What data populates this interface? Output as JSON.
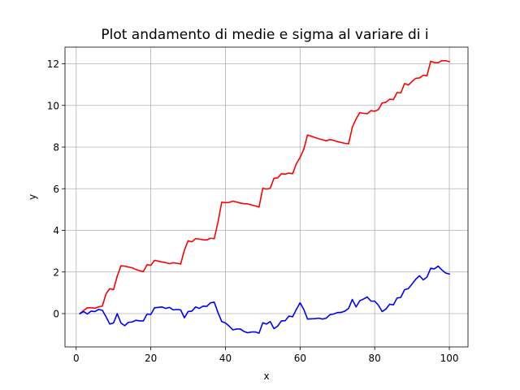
{
  "chart_data": {
    "type": "line",
    "title": "Plot andamento di medie e sigma al variare di i",
    "xlabel": "x",
    "ylabel": "y",
    "xlim": [
      -3,
      105
    ],
    "ylim": [
      -1.6,
      12.8
    ],
    "xticks": [
      0,
      20,
      40,
      60,
      80,
      100
    ],
    "xtick_labels": [
      "0",
      "20",
      "40",
      "60",
      "80",
      "100"
    ],
    "yticks": [
      0,
      2,
      4,
      6,
      8,
      10,
      12
    ],
    "ytick_labels": [
      "0",
      "2",
      "4",
      "6",
      "8",
      "10",
      "12"
    ],
    "grid": true,
    "legend": "none",
    "series": [
      {
        "color": "#ff0000",
        "points": [
          [
            1,
            0.0
          ],
          [
            2,
            0.15
          ],
          [
            3,
            0.28
          ],
          [
            4,
            0.28
          ],
          [
            5,
            0.26
          ],
          [
            6,
            0.32
          ],
          [
            7,
            0.36
          ],
          [
            8,
            0.95
          ],
          [
            9,
            1.2
          ],
          [
            10,
            1.15
          ],
          [
            11,
            1.8
          ],
          [
            12,
            2.3
          ],
          [
            13,
            2.28
          ],
          [
            14,
            2.24
          ],
          [
            15,
            2.2
          ],
          [
            16,
            2.12
          ],
          [
            17,
            2.06
          ],
          [
            18,
            2.02
          ],
          [
            19,
            2.35
          ],
          [
            20,
            2.32
          ],
          [
            21,
            2.56
          ],
          [
            22,
            2.52
          ],
          [
            23,
            2.48
          ],
          [
            24,
            2.45
          ],
          [
            25,
            2.4
          ],
          [
            26,
            2.44
          ],
          [
            27,
            2.42
          ],
          [
            28,
            2.38
          ],
          [
            29,
            3.05
          ],
          [
            30,
            3.5
          ],
          [
            31,
            3.45
          ],
          [
            32,
            3.6
          ],
          [
            33,
            3.58
          ],
          [
            34,
            3.55
          ],
          [
            35,
            3.54
          ],
          [
            36,
            3.62
          ],
          [
            37,
            3.6
          ],
          [
            38,
            4.4
          ],
          [
            39,
            5.35
          ],
          [
            40,
            5.33
          ],
          [
            41,
            5.34
          ],
          [
            42,
            5.4
          ],
          [
            43,
            5.36
          ],
          [
            44,
            5.31
          ],
          [
            45,
            5.28
          ],
          [
            46,
            5.27
          ],
          [
            47,
            5.22
          ],
          [
            48,
            5.17
          ],
          [
            49,
            5.12
          ],
          [
            50,
            6.02
          ],
          [
            51,
            5.98
          ],
          [
            52,
            6.02
          ],
          [
            53,
            6.5
          ],
          [
            54,
            6.52
          ],
          [
            55,
            6.72
          ],
          [
            56,
            6.7
          ],
          [
            57,
            6.75
          ],
          [
            58,
            6.72
          ],
          [
            59,
            7.2
          ],
          [
            60,
            7.5
          ],
          [
            61,
            7.9
          ],
          [
            62,
            8.58
          ],
          [
            63,
            8.52
          ],
          [
            64,
            8.46
          ],
          [
            65,
            8.4
          ],
          [
            66,
            8.35
          ],
          [
            67,
            8.3
          ],
          [
            68,
            8.36
          ],
          [
            69,
            8.32
          ],
          [
            70,
            8.26
          ],
          [
            71,
            8.22
          ],
          [
            72,
            8.18
          ],
          [
            73,
            8.16
          ],
          [
            74,
            8.95
          ],
          [
            75,
            9.35
          ],
          [
            76,
            9.65
          ],
          [
            77,
            9.62
          ],
          [
            78,
            9.6
          ],
          [
            79,
            9.75
          ],
          [
            80,
            9.72
          ],
          [
            81,
            9.8
          ],
          [
            82,
            10.12
          ],
          [
            83,
            10.15
          ],
          [
            84,
            10.3
          ],
          [
            85,
            10.28
          ],
          [
            86,
            10.62
          ],
          [
            87,
            10.6
          ],
          [
            88,
            11.05
          ],
          [
            89,
            10.98
          ],
          [
            90,
            11.15
          ],
          [
            91,
            11.3
          ],
          [
            92,
            11.32
          ],
          [
            93,
            11.45
          ],
          [
            94,
            11.42
          ],
          [
            95,
            12.12
          ],
          [
            96,
            12.06
          ],
          [
            97,
            12.05
          ],
          [
            98,
            12.15
          ],
          [
            99,
            12.15
          ],
          [
            100,
            12.1
          ]
        ]
      },
      {
        "color": "#0000ff",
        "points": [
          [
            1,
            0.0
          ],
          [
            2,
            0.1
          ],
          [
            3,
            -0.02
          ],
          [
            4,
            0.12
          ],
          [
            5,
            0.1
          ],
          [
            6,
            0.2
          ],
          [
            7,
            0.16
          ],
          [
            8,
            -0.15
          ],
          [
            9,
            -0.5
          ],
          [
            10,
            -0.45
          ],
          [
            11,
            0.0
          ],
          [
            12,
            -0.45
          ],
          [
            13,
            -0.58
          ],
          [
            14,
            -0.42
          ],
          [
            15,
            -0.4
          ],
          [
            16,
            -0.32
          ],
          [
            17,
            -0.35
          ],
          [
            18,
            -0.35
          ],
          [
            19,
            -0.02
          ],
          [
            20,
            -0.04
          ],
          [
            21,
            0.28
          ],
          [
            22,
            0.3
          ],
          [
            23,
            0.32
          ],
          [
            24,
            0.25
          ],
          [
            25,
            0.3
          ],
          [
            26,
            0.18
          ],
          [
            27,
            0.2
          ],
          [
            28,
            0.18
          ],
          [
            29,
            -0.2
          ],
          [
            30,
            0.1
          ],
          [
            31,
            0.12
          ],
          [
            32,
            0.32
          ],
          [
            33,
            0.25
          ],
          [
            34,
            0.36
          ],
          [
            35,
            0.35
          ],
          [
            36,
            0.52
          ],
          [
            37,
            0.55
          ],
          [
            38,
            0.05
          ],
          [
            39,
            -0.38
          ],
          [
            40,
            -0.45
          ],
          [
            41,
            -0.6
          ],
          [
            42,
            -0.78
          ],
          [
            43,
            -0.74
          ],
          [
            44,
            -0.74
          ],
          [
            45,
            -0.86
          ],
          [
            46,
            -0.92
          ],
          [
            47,
            -0.88
          ],
          [
            48,
            -0.88
          ],
          [
            49,
            -0.94
          ],
          [
            50,
            -0.44
          ],
          [
            51,
            -0.5
          ],
          [
            52,
            -0.38
          ],
          [
            53,
            -0.72
          ],
          [
            54,
            -0.6
          ],
          [
            55,
            -0.35
          ],
          [
            56,
            -0.34
          ],
          [
            57,
            -0.12
          ],
          [
            58,
            -0.15
          ],
          [
            59,
            0.2
          ],
          [
            60,
            0.52
          ],
          [
            61,
            0.2
          ],
          [
            62,
            -0.26
          ],
          [
            63,
            -0.25
          ],
          [
            64,
            -0.24
          ],
          [
            65,
            -0.22
          ],
          [
            66,
            -0.26
          ],
          [
            67,
            -0.22
          ],
          [
            68,
            -0.05
          ],
          [
            69,
            -0.02
          ],
          [
            70,
            0.05
          ],
          [
            71,
            0.06
          ],
          [
            72,
            0.12
          ],
          [
            73,
            0.25
          ],
          [
            74,
            0.68
          ],
          [
            75,
            0.32
          ],
          [
            76,
            0.62
          ],
          [
            77,
            0.7
          ],
          [
            78,
            0.8
          ],
          [
            79,
            0.6
          ],
          [
            80,
            0.6
          ],
          [
            81,
            0.4
          ],
          [
            82,
            0.1
          ],
          [
            83,
            0.22
          ],
          [
            84,
            0.45
          ],
          [
            85,
            0.42
          ],
          [
            86,
            0.75
          ],
          [
            87,
            0.78
          ],
          [
            88,
            1.15
          ],
          [
            89,
            1.2
          ],
          [
            90,
            1.42
          ],
          [
            91,
            1.65
          ],
          [
            92,
            1.82
          ],
          [
            93,
            1.62
          ],
          [
            94,
            1.75
          ],
          [
            95,
            2.18
          ],
          [
            96,
            2.15
          ],
          [
            97,
            2.28
          ],
          [
            98,
            2.1
          ],
          [
            99,
            1.95
          ],
          [
            100,
            1.9
          ]
        ]
      }
    ]
  }
}
